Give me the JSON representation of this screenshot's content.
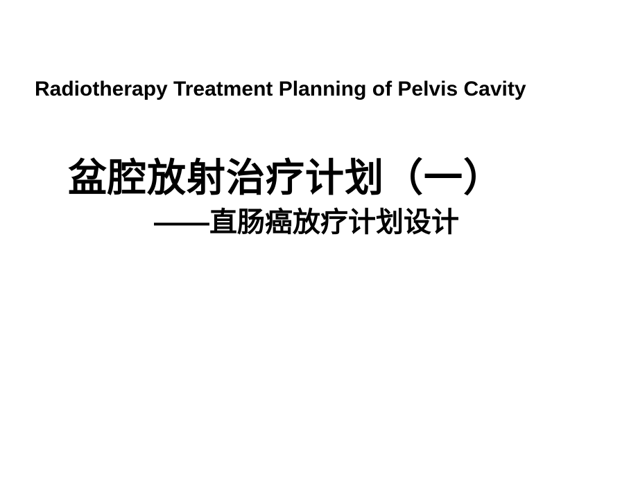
{
  "slide": {
    "english_title": "Radiotherapy Treatment Planning of Pelvis Cavity",
    "chinese_title": "盆腔放射治疗计划（一）",
    "chinese_subtitle": "——直肠癌放疗计划设计",
    "background_color": "#ffffff",
    "text_color": "#000000",
    "english_title_fontsize": 30,
    "chinese_title_fontsize": 56,
    "chinese_subtitle_fontsize": 40
  }
}
